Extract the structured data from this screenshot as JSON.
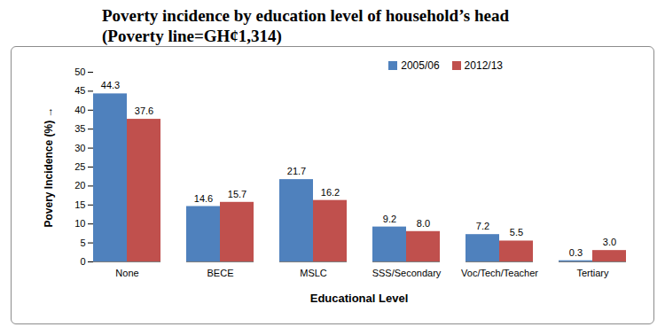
{
  "chart_data": {
    "type": "bar",
    "title": "Poverty incidence by education level of household’s head",
    "subtitle": "(Poverty line=GH¢1,314)",
    "x_label": "Educational Level",
    "y_label": "Povery Incidence (%)",
    "categories": [
      "None",
      "BECE",
      "MSLC",
      "SSS/Secondary",
      "Voc/Tech/Teacher",
      "Tertiary"
    ],
    "series": [
      {
        "name": "2005/06",
        "color": "#4F81BD",
        "values": [
          44.3,
          14.6,
          21.7,
          9.2,
          7.2,
          0.3
        ],
        "value_labels": [
          "44.3",
          "14.6",
          "21.7",
          "9.2",
          "7.2",
          "0.3"
        ]
      },
      {
        "name": "2012/13",
        "color": "#C0504D",
        "values": [
          37.6,
          15.7,
          16.2,
          8.0,
          5.5,
          3.0
        ],
        "value_labels": [
          "37.6",
          "15.7",
          "16.2",
          "8.0",
          "5.5",
          "3.0"
        ]
      }
    ],
    "ylim": [
      0,
      50
    ],
    "yticks": [
      0,
      5,
      10,
      15,
      20,
      25,
      30,
      35,
      40,
      45,
      50
    ],
    "grid": false,
    "legend": "top-right",
    "data_labels": true
  }
}
